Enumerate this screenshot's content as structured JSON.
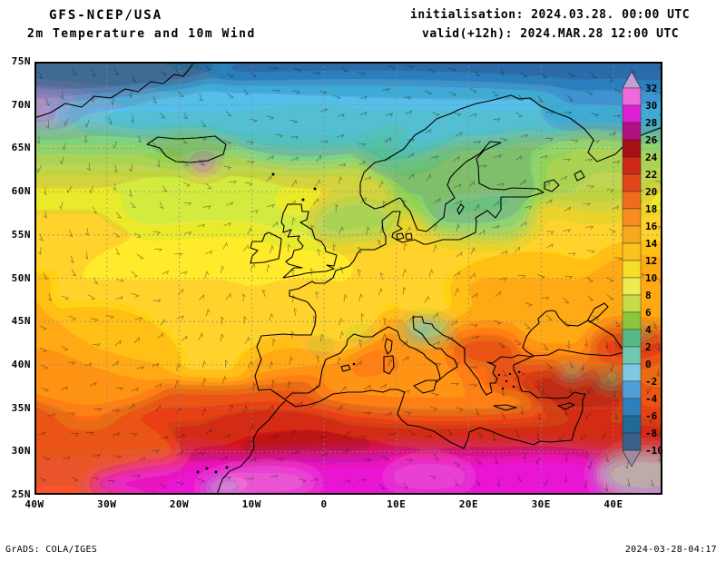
{
  "header": {
    "model": "GFS-NCEP/USA",
    "subtitle": "2m Temperature and 10m Wind",
    "init_label": "initialisation: 2024.03.28. 00:00 UTC",
    "valid_label": "valid(+12h): 2024.MAR.28 12:00 UTC"
  },
  "footer": {
    "grads_credit": "GrADS: COLA/IGES",
    "timestamp": "2024-03-28-04:17"
  },
  "map": {
    "lat_ticks": [
      {
        "deg": 75,
        "label": "75N"
      },
      {
        "deg": 70,
        "label": "70N"
      },
      {
        "deg": 65,
        "label": "65N"
      },
      {
        "deg": 60,
        "label": "60N"
      },
      {
        "deg": 55,
        "label": "55N"
      },
      {
        "deg": 50,
        "label": "50N"
      },
      {
        "deg": 45,
        "label": "45N"
      },
      {
        "deg": 40,
        "label": "40N"
      },
      {
        "deg": 35,
        "label": "35N"
      },
      {
        "deg": 30,
        "label": "30N"
      },
      {
        "deg": 25,
        "label": "25N"
      }
    ],
    "lon_ticks": [
      {
        "deg": -40,
        "label": "40W"
      },
      {
        "deg": -30,
        "label": "30W"
      },
      {
        "deg": -20,
        "label": "20W"
      },
      {
        "deg": -10,
        "label": "10W"
      },
      {
        "deg": 0,
        "label": "0"
      },
      {
        "deg": 10,
        "label": "10E"
      },
      {
        "deg": 20,
        "label": "20E"
      },
      {
        "deg": 30,
        "label": "30E"
      },
      {
        "deg": 40,
        "label": "40E"
      }
    ],
    "lat_range": [
      25,
      75
    ],
    "lon_range": [
      -40,
      46.8
    ]
  },
  "colorbar": {
    "labels": [
      "32",
      "30",
      "28",
      "26",
      "24",
      "22",
      "20",
      "18",
      "16",
      "14",
      "12",
      "10",
      "8",
      "6",
      "4",
      "2",
      "0",
      "-2",
      "-4",
      "-6",
      "-8",
      "-10"
    ],
    "colors_top_to_bottom": [
      "#c2a0d5",
      "#ee6ad8",
      "#df1fd3",
      "#b0127f",
      "#a51116",
      "#cc2a16",
      "#e0481c",
      "#ef6c1d",
      "#f68d1e",
      "#f8a81e",
      "#f9c21f",
      "#f6dd28",
      "#eeea52",
      "#c6dc48",
      "#8cc63f",
      "#58b787",
      "#6fc9b2",
      "#7ec8e3",
      "#4f9fd6",
      "#2f80ba",
      "#1f6a96",
      "#3a5f89",
      "#9b8ba5"
    ]
  },
  "chart_data": {
    "type": "heatmap",
    "variable": "2m Temperature",
    "overlay": "10m Wind",
    "model": "GFS-NCEP/USA",
    "init": "2024.03.28. 00:00 UTC",
    "valid": "2024.MAR.28 12:00 UTC",
    "lead": "+12h",
    "lat_range": [
      25,
      75
    ],
    "lon_range": [
      -40,
      46.8
    ],
    "temperature_levels": [
      32,
      30,
      28,
      26,
      24,
      22,
      20,
      18,
      16,
      14,
      12,
      10,
      8,
      6,
      4,
      2,
      0,
      -2,
      -4,
      -6,
      -8,
      -10
    ]
  }
}
